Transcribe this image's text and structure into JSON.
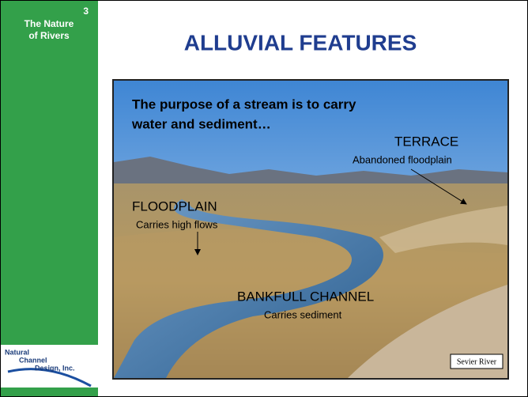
{
  "sidebar": {
    "number": "3",
    "title_lines": [
      "The Nature",
      "of Rivers"
    ],
    "logo_lines": [
      "Natural",
      "Channel",
      "Design, Inc."
    ]
  },
  "title": "ALLUVIAL FEATURES",
  "photo": {
    "headline_lines": [
      "The purpose of a stream is to carry",
      "water and sediment…"
    ],
    "labels": [
      {
        "name": "TERRACE",
        "note": "Abandoned floodplain"
      },
      {
        "name": "FLOODPLAIN",
        "note": "Carries high flows"
      },
      {
        "name": "BANKFULL CHANNEL",
        "note": "Carries sediment"
      }
    ],
    "caption": "Sevier River"
  }
}
